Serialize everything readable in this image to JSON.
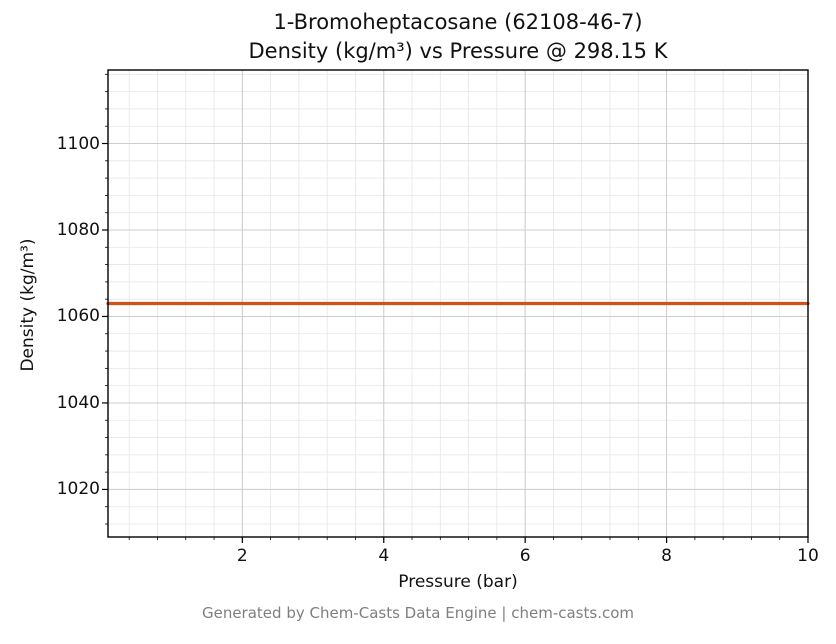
{
  "title": {
    "line1": "1-Bromoheptacosane (62108-46-7)",
    "line2": "Density (kg/m³) vs Pressure @ 298.15 K"
  },
  "axes": {
    "xlabel": "Pressure (bar)",
    "ylabel": "Density (kg/m³)"
  },
  "footer": {
    "text": "Generated by Chem-Casts Data Engine | chem-casts.com"
  },
  "chart_data": {
    "type": "line",
    "title": "1-Bromoheptacosane (62108-46-7) Density (kg/m³) vs Pressure @ 298.15 K",
    "xlabel": "Pressure (bar)",
    "ylabel": "Density (kg/m³)",
    "xlim": [
      0.1,
      10
    ],
    "ylim": [
      1009,
      1117
    ],
    "x_ticks": [
      2,
      4,
      6,
      8,
      10
    ],
    "y_ticks": [
      1020,
      1040,
      1060,
      1080,
      1100
    ],
    "x_minor_step": 0.4,
    "y_minor_step": 4,
    "grid": {
      "major": true,
      "minor": true
    },
    "legend_position": "none",
    "series": [
      {
        "name": "Density",
        "color": "#d2521c",
        "x": [
          0.1,
          10
        ],
        "y": [
          1063,
          1063
        ]
      }
    ]
  },
  "colors": {
    "line": "#d2521c",
    "grid_major": "#cdcdcd",
    "grid_minor": "#e6e6e6",
    "footer_text": "#7f7f7f"
  }
}
